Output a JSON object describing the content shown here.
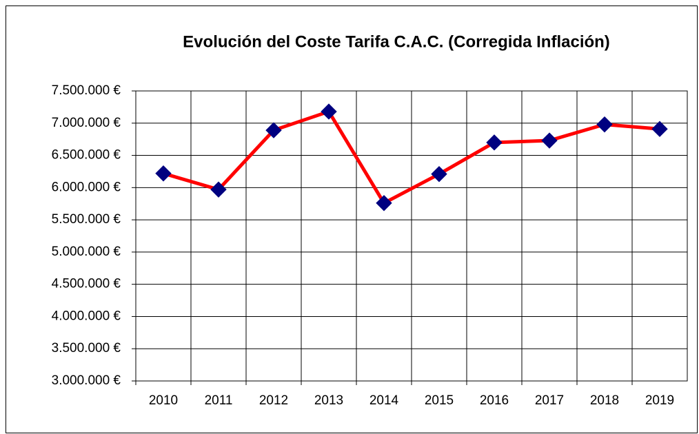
{
  "chart_data": {
    "type": "line",
    "title": "Evolución del Coste Tarifa C.A.C. (Corregida Inflación)",
    "categories": [
      "2010",
      "2011",
      "2012",
      "2013",
      "2014",
      "2015",
      "2016",
      "2017",
      "2018",
      "2019"
    ],
    "series": [
      {
        "name": "Coste Tarifa C.A.C.",
        "color": "#ff0000",
        "marker_color": "#000080",
        "values": [
          6220000,
          5970000,
          6890000,
          7180000,
          5760000,
          6210000,
          6700000,
          6730000,
          6980000,
          6910000
        ]
      }
    ],
    "ylim": [
      3000000,
      7500000
    ],
    "yticks": [
      {
        "value": 3000000,
        "label": "3.000.000 €"
      },
      {
        "value": 3500000,
        "label": "3.500.000 €"
      },
      {
        "value": 4000000,
        "label": "4.000.000 €"
      },
      {
        "value": 4500000,
        "label": "4.500.000 €"
      },
      {
        "value": 5000000,
        "label": "5.000.000 €"
      },
      {
        "value": 5500000,
        "label": "5.500.000 €"
      },
      {
        "value": 6000000,
        "label": "6.000.000 €"
      },
      {
        "value": 6500000,
        "label": "6.500.000 €"
      },
      {
        "value": 7000000,
        "label": "7.000.000 €"
      },
      {
        "value": 7500000,
        "label": "7.500.000 €"
      }
    ],
    "grid": true
  }
}
